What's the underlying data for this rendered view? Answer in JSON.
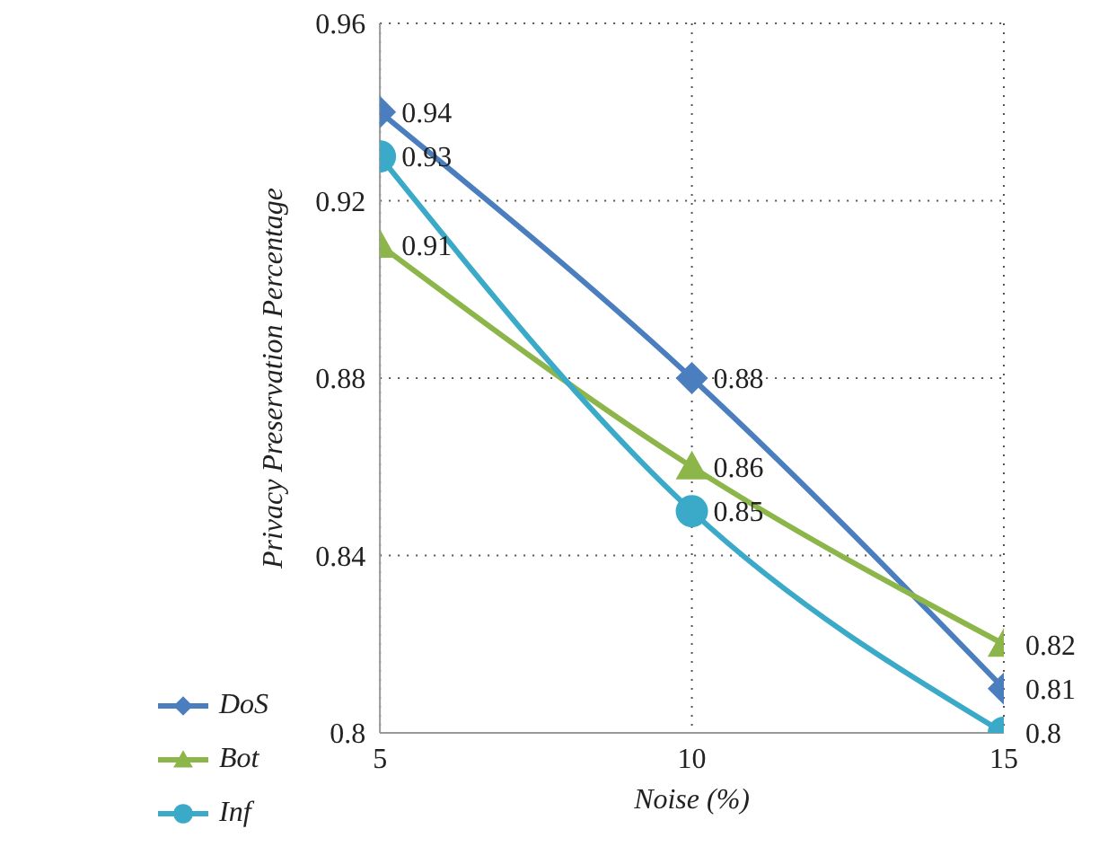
{
  "chart_data": {
    "type": "line",
    "xlabel": "Noise (%)",
    "ylabel": "Privacy Preservation Percentage",
    "x": [
      5,
      10,
      15
    ],
    "series": [
      {
        "name": "DoS",
        "color": "#4a7ebf",
        "marker": "diamond",
        "values": [
          0.94,
          0.88,
          0.81
        ]
      },
      {
        "name": "Bot",
        "color": "#8db64a",
        "marker": "triangle",
        "values": [
          0.91,
          0.86,
          0.82
        ]
      },
      {
        "name": "Inf",
        "color": "#3aaac8",
        "marker": "circle",
        "values": [
          0.93,
          0.85,
          0.8
        ]
      }
    ],
    "xlim": [
      5,
      15
    ],
    "xticks": [
      5,
      10,
      15
    ],
    "ylim": [
      0.8,
      0.96
    ],
    "yticks": [
      0.8,
      0.84,
      0.88,
      0.92,
      0.96
    ],
    "grid": true,
    "legend": "bottom left",
    "data_labels": true
  }
}
